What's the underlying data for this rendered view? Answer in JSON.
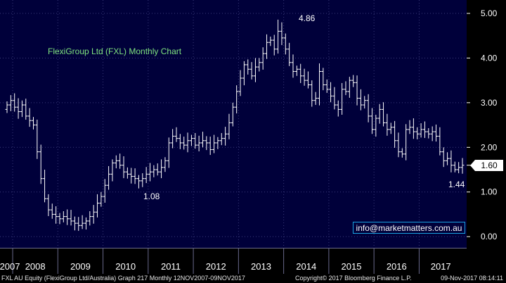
{
  "chart_data": {
    "type": "bar",
    "style": "OHLC monthly price bars",
    "title": "FlexiGroup Ltd (FXL) Monthly Chart",
    "y_ticks": [
      "0.00",
      "1.00",
      "2.00",
      "3.00",
      "4.00",
      "5.00"
    ],
    "ylim": [
      -0.25,
      5.3
    ],
    "x_ticks": [
      "2007",
      "2008",
      "2009",
      "2010",
      "2011",
      "2012",
      "2013",
      "2014",
      "2015",
      "2016",
      "2017"
    ],
    "x_range_months": [
      0,
      121
    ],
    "last_price_label": "1.60",
    "annotations": [
      {
        "text": "4.86",
        "x": 73,
        "y": 4.86
      },
      {
        "text": "1.08",
        "x": 35,
        "y": 1.08
      },
      {
        "text": "1.44",
        "x": 120,
        "y": 1.44
      }
    ],
    "monthly_closes": [
      2.95,
      3.05,
      2.9,
      2.8,
      2.95,
      2.7,
      2.6,
      2.5,
      1.9,
      1.3,
      0.85,
      0.6,
      0.5,
      0.45,
      0.4,
      0.45,
      0.4,
      0.35,
      0.3,
      0.25,
      0.3,
      0.35,
      0.45,
      0.55,
      0.75,
      0.9,
      1.15,
      1.4,
      1.65,
      1.7,
      1.6,
      1.45,
      1.4,
      1.35,
      1.3,
      1.25,
      1.3,
      1.4,
      1.45,
      1.5,
      1.45,
      1.55,
      1.7,
      2.1,
      2.25,
      2.2,
      2.1,
      2.05,
      2.15,
      2.2,
      2.05,
      2.1,
      2.15,
      2.1,
      1.95,
      2.1,
      2.15,
      2.2,
      2.3,
      2.55,
      2.9,
      3.25,
      3.55,
      3.85,
      3.75,
      3.6,
      3.8,
      3.9,
      4.1,
      4.35,
      4.4,
      4.2,
      4.6,
      4.45,
      4.2,
      3.9,
      3.7,
      3.75,
      3.6,
      3.5,
      3.4,
      3.05,
      3.1,
      3.7,
      3.4,
      3.3,
      3.15,
      2.95,
      2.85,
      3.3,
      3.25,
      3.5,
      3.45,
      3.1,
      2.95,
      3.05,
      2.7,
      2.4,
      2.65,
      2.85,
      2.55,
      2.4,
      2.45,
      2.15,
      1.9,
      1.85,
      2.4,
      2.45,
      2.35,
      2.3,
      2.4,
      2.35,
      2.3,
      2.35,
      2.25,
      1.9,
      1.7,
      1.75,
      1.6,
      1.5,
      1.55,
      1.6
    ]
  },
  "labels": {
    "title": "FlexiGroup Ltd (FXL) Monthly Chart",
    "email": "info@marketmatters.com.au",
    "last": "1.60",
    "high": "4.86",
    "low1": "1.08",
    "low2": "1.44"
  },
  "footer": {
    "left": "FXL AU Equity (FlexiGroup Ltd/Australia) Graph 217  Monthly 12NOV2007-09NOV2017",
    "center": "Copyright© 2017 Bloomberg Finance L.P.",
    "right": "09-Nov-2017 08:14:11"
  }
}
